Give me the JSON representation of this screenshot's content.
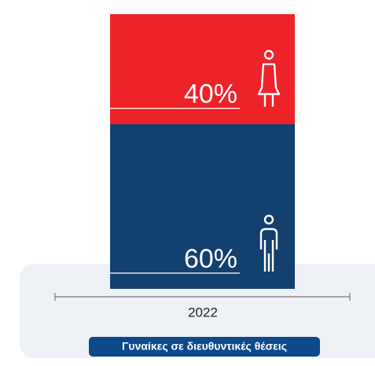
{
  "chart_data": {
    "type": "bar",
    "stacked": true,
    "categories": [
      "2022"
    ],
    "series": [
      {
        "color": "#13406e",
        "values": [
          60
        ],
        "value_labels": [
          "60%"
        ],
        "icon": "man"
      },
      {
        "color": "#ee2229",
        "values": [
          40
        ],
        "value_labels": [
          "40%"
        ],
        "icon": "woman"
      }
    ],
    "ylim": [
      0,
      100
    ],
    "filter_label": "Γυναίκες σε διευθυντικές θέσεις"
  }
}
